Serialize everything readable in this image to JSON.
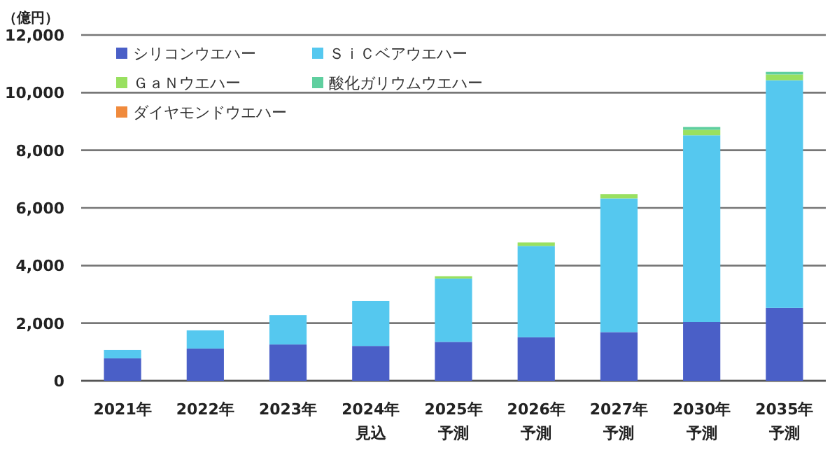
{
  "chart_data": {
    "type": "bar",
    "stacked": true,
    "ylabel": "（億円）",
    "categories": [
      "2021年",
      "2022年",
      "2023年",
      "2024年見込",
      "2025年予測",
      "2026年予測",
      "2027年予測",
      "2030年予測",
      "2035年予測"
    ],
    "series": [
      {
        "name": "シリコンウエハー",
        "color": "#4a5fc7",
        "values": [
          780,
          1120,
          1260,
          1210,
          1350,
          1510,
          1690,
          2040,
          2530
        ]
      },
      {
        "name": "ＳｉＣベアウエハー",
        "color": "#55c8ef",
        "values": [
          290,
          630,
          1020,
          1560,
          2200,
          3170,
          4640,
          6480,
          7900
        ]
      },
      {
        "name": "ＧａＮウエハー",
        "color": "#99e060",
        "values": [
          0,
          0,
          0,
          0,
          80,
          120,
          150,
          190,
          200
        ]
      },
      {
        "name": "酸化ガリウムウエハー",
        "color": "#5fcf9f",
        "values": [
          0,
          0,
          0,
          0,
          0,
          0,
          0,
          100,
          90
        ]
      },
      {
        "name": "ダイヤモンドウエハー",
        "color": "#f08a3c",
        "values": [
          0,
          0,
          0,
          0,
          0,
          0,
          0,
          0,
          0
        ]
      }
    ],
    "ylim": [
      0,
      12000
    ],
    "yticks": [
      {
        "value": 0,
        "label": "0"
      },
      {
        "value": 2000,
        "label": "2,000"
      },
      {
        "value": 4000,
        "label": "4,000"
      },
      {
        "value": 6000,
        "label": "6,000"
      },
      {
        "value": 8000,
        "label": "8,000"
      },
      {
        "value": 10000,
        "label": "10,000"
      },
      {
        "value": 12000,
        "label": "12,000"
      }
    ],
    "grid": "y",
    "legend": "top left"
  }
}
